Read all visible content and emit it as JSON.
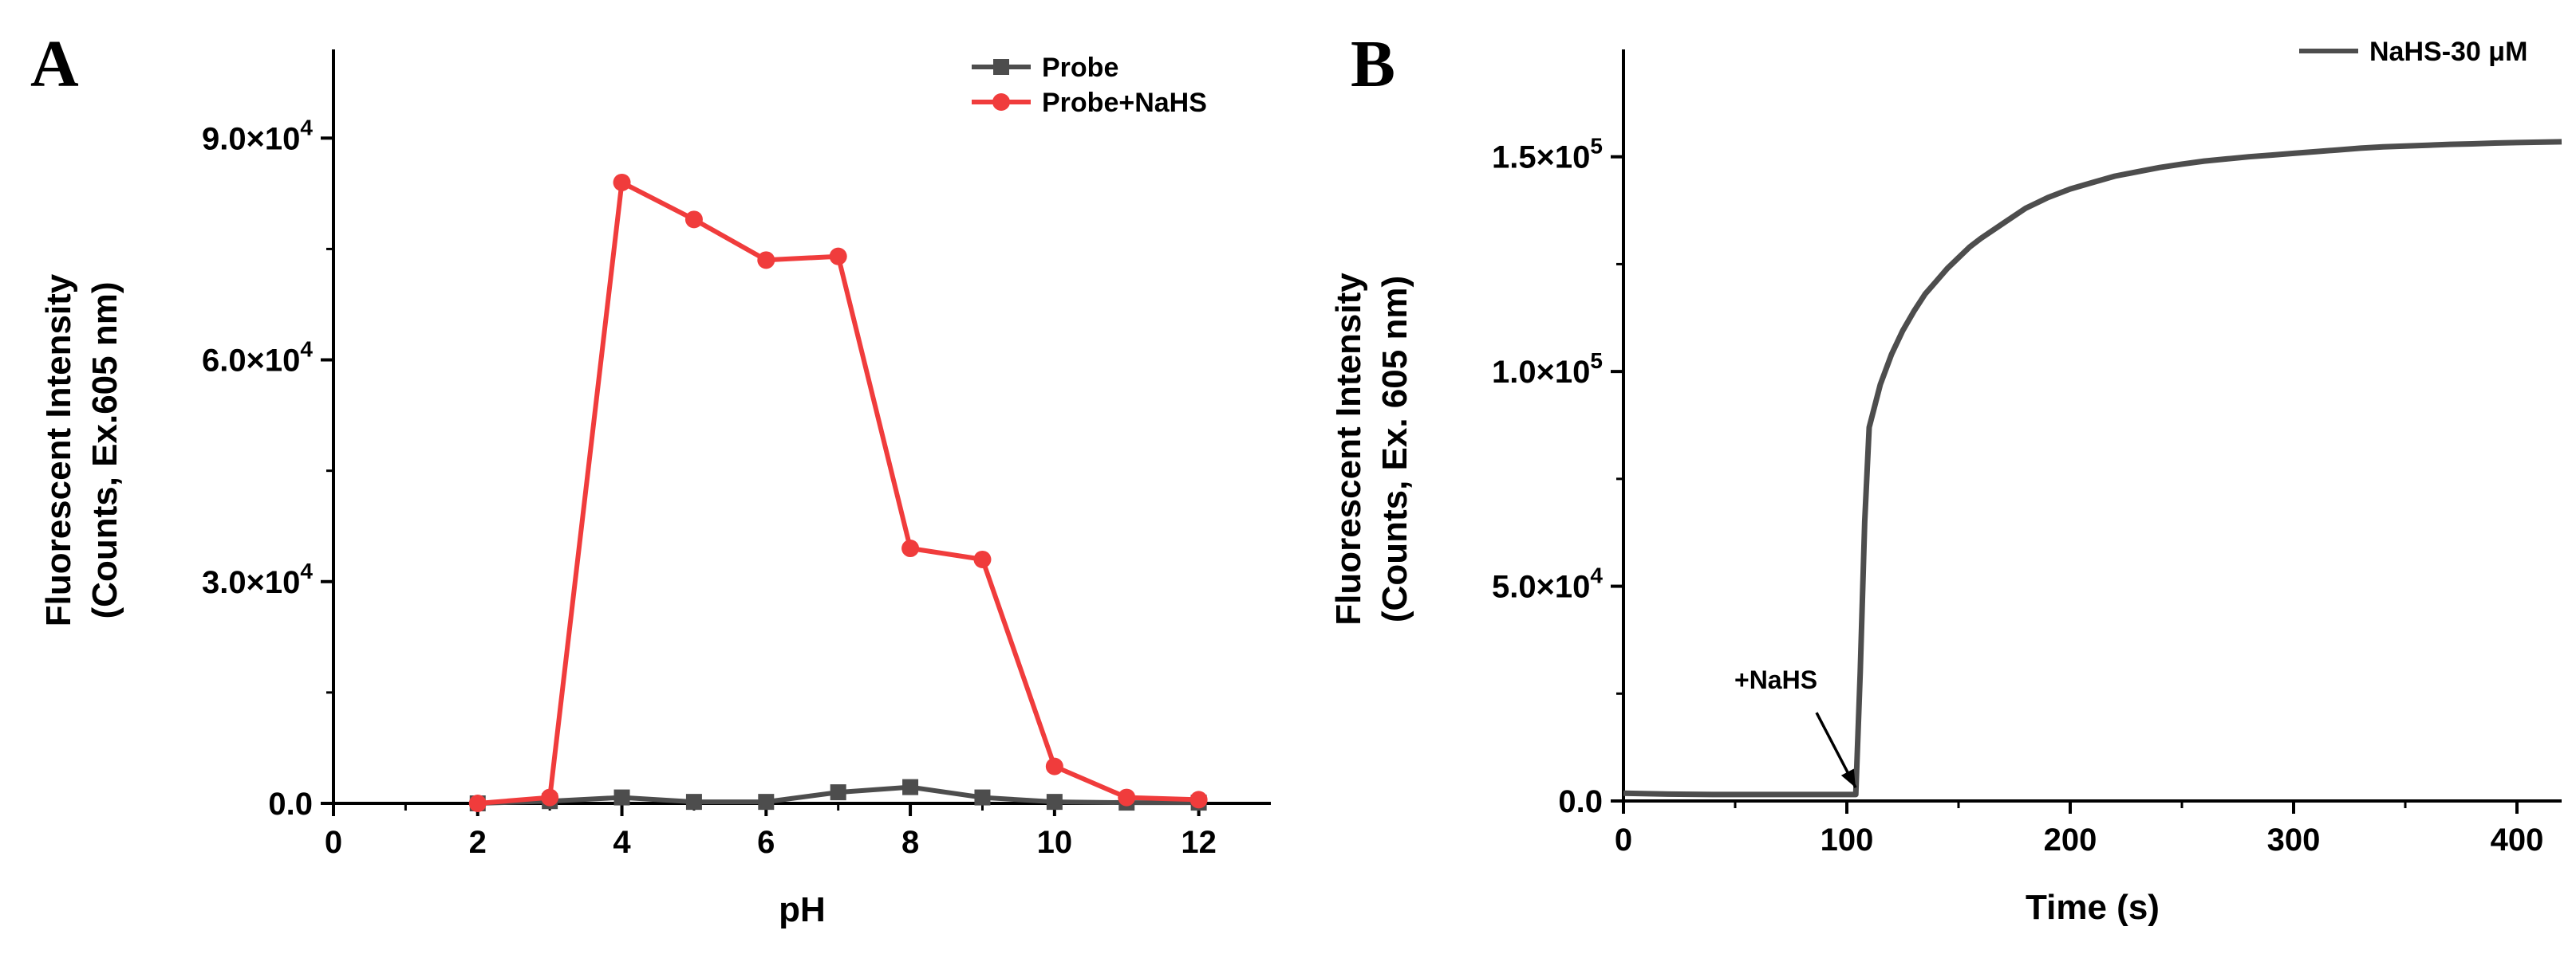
{
  "chart_data": [
    {
      "panel_label": "A",
      "type": "line",
      "xlabel": "pH",
      "ylabel_lines": [
        "Fluorescent Intensity",
        "(Counts, Ex.605 nm)"
      ],
      "xlim": [
        0,
        13
      ],
      "ylim": [
        0,
        102000
      ],
      "x_ticks": [
        0,
        2,
        4,
        6,
        8,
        10,
        12
      ],
      "x_tick_labels": [
        "0",
        "2",
        "4",
        "6",
        "8",
        "10",
        "12"
      ],
      "y_ticks": [
        0,
        30000,
        60000,
        90000
      ],
      "y_tick_labels": [
        {
          "mant": "0.0",
          "exp": ""
        },
        {
          "mant": "3.0×10",
          "exp": "4"
        },
        {
          "mant": "6.0×10",
          "exp": "4"
        },
        {
          "mant": "9.0×10",
          "exp": "4"
        }
      ],
      "legend_position": "top-right",
      "series": [
        {
          "name": "Probe",
          "color": "#4d4d4d",
          "marker": "square",
          "x": [
            2,
            3,
            4,
            5,
            6,
            7,
            8,
            9,
            10,
            11,
            12
          ],
          "y": [
            0,
            300,
            800,
            200,
            200,
            1500,
            2200,
            800,
            200,
            100,
            100
          ]
        },
        {
          "name": "Probe+NaHS",
          "color": "#f03c3c",
          "marker": "circle",
          "x": [
            2,
            3,
            4,
            5,
            6,
            7,
            8,
            9,
            10,
            11,
            12
          ],
          "y": [
            0,
            800,
            84000,
            79000,
            73500,
            74000,
            34500,
            33000,
            5000,
            800,
            500
          ]
        }
      ]
    },
    {
      "panel_label": "B",
      "type": "line",
      "xlabel": "Time (s)",
      "ylabel_lines": [
        "Fluorescent Intensity",
        "(Counts, Ex. 605 nm)"
      ],
      "xlim": [
        0,
        420
      ],
      "ylim": [
        0,
        175000
      ],
      "x_ticks": [
        0,
        100,
        200,
        300,
        400
      ],
      "x_tick_labels": [
        "0",
        "100",
        "200",
        "300",
        "400"
      ],
      "y_ticks": [
        0,
        50000,
        100000,
        150000
      ],
      "y_tick_labels": [
        {
          "mant": "0.0",
          "exp": ""
        },
        {
          "mant": "5.0×10",
          "exp": "4"
        },
        {
          "mant": "1.0×10",
          "exp": "5"
        },
        {
          "mant": "1.5×10",
          "exp": "5"
        }
      ],
      "legend_position": "top-right",
      "annotation": {
        "text": "+NaHS",
        "x": 105,
        "y": 2000
      },
      "series": [
        {
          "name": "NaHS-30 μM",
          "color": "#4d4d4d",
          "x": [
            0,
            20,
            40,
            60,
            80,
            100,
            104,
            106,
            108,
            110,
            115,
            120,
            125,
            130,
            135,
            140,
            145,
            150,
            155,
            160,
            170,
            180,
            190,
            200,
            210,
            220,
            230,
            240,
            250,
            260,
            270,
            280,
            290,
            300,
            310,
            320,
            330,
            340,
            350,
            360,
            370,
            380,
            390,
            400,
            410,
            420
          ],
          "y": [
            1800,
            1600,
            1500,
            1500,
            1500,
            1500,
            1500,
            30000,
            65000,
            87000,
            97000,
            104000,
            109500,
            114000,
            118000,
            121000,
            124000,
            126500,
            129000,
            131000,
            134500,
            138000,
            140500,
            142500,
            144000,
            145500,
            146500,
            147500,
            148300,
            149000,
            149500,
            150000,
            150400,
            150800,
            151200,
            151600,
            152000,
            152300,
            152500,
            152700,
            152900,
            153000,
            153200,
            153300,
            153400,
            153500
          ]
        }
      ]
    }
  ]
}
